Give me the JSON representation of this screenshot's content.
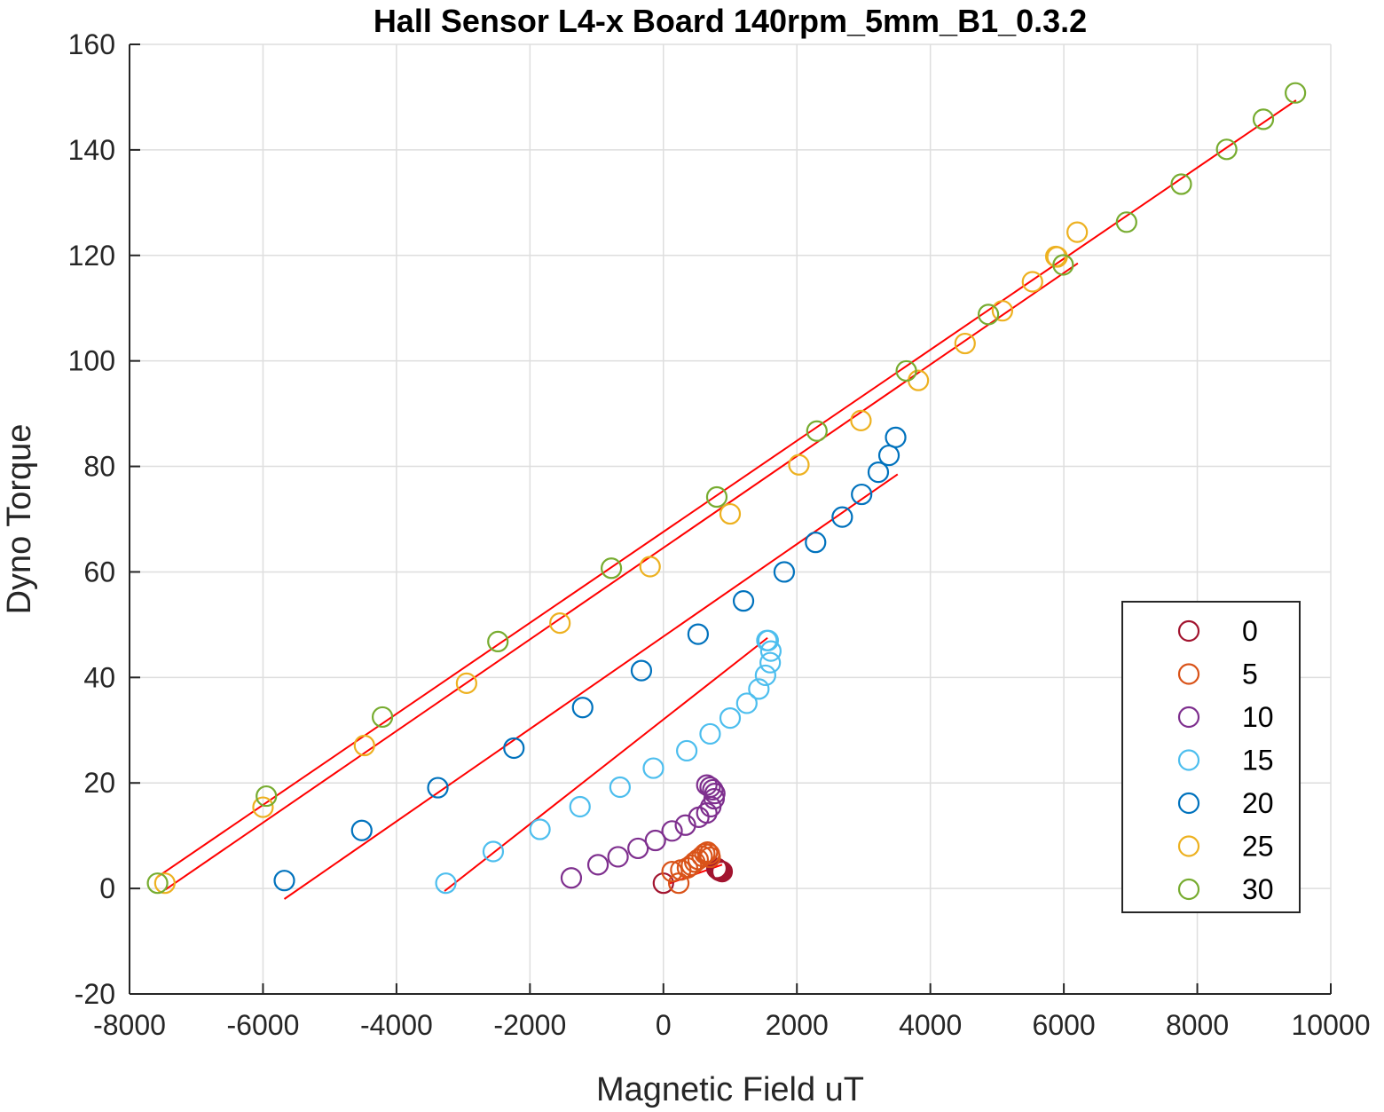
{
  "chart_data": {
    "type": "scatter",
    "title": "Hall Sensor L4-x Board 140rpm_5mm_B1_0.3.2",
    "xlabel": "Magnetic Field uT",
    "ylabel": "Dyno Torque",
    "xlim": [
      -8000,
      10000
    ],
    "ylim": [
      -20,
      160
    ],
    "xticks": [
      -8000,
      -6000,
      -4000,
      -2000,
      0,
      2000,
      4000,
      6000,
      8000,
      10000
    ],
    "yticks": [
      -20,
      0,
      20,
      40,
      60,
      80,
      100,
      120,
      140,
      160
    ],
    "xtick_labels": [
      "-8000",
      "-6000",
      "-4000",
      "-2000",
      "0",
      "2000",
      "4000",
      "6000",
      "8000",
      "10000"
    ],
    "ytick_labels": [
      "-20",
      "0",
      "20",
      "40",
      "60",
      "80",
      "100",
      "120",
      "140",
      "160"
    ],
    "grid": true,
    "legend_position": "bottom-right",
    "series": [
      {
        "name": "0",
        "color": "#a2142f",
        "marker": "circle",
        "x": [
          0,
          800,
          820,
          840,
          860,
          880
        ],
        "y": [
          1,
          3.8,
          3.6,
          3.4,
          3.3,
          3.2
        ]
      },
      {
        "name": "5",
        "color": "#d95319",
        "marker": "circle",
        "x": [
          230,
          130,
          260,
          360,
          420,
          470,
          520,
          580,
          620,
          660,
          690,
          700
        ],
        "y": [
          1,
          3.2,
          3.5,
          3.9,
          4.4,
          5,
          5.5,
          6.1,
          6.6,
          6.9,
          6.5,
          5.9
        ]
      },
      {
        "name": "10",
        "color": "#7e2f8e",
        "marker": "circle",
        "x": [
          -1380,
          -980,
          -680,
          -380,
          -120,
          130,
          330,
          530,
          650,
          710,
          760,
          770,
          740,
          700,
          650
        ],
        "y": [
          2,
          4.5,
          6,
          7.6,
          9.1,
          10.9,
          12,
          13.5,
          14.3,
          15.5,
          17,
          18,
          18.7,
          19.2,
          19.6
        ]
      },
      {
        "name": "15",
        "color": "#4dbeee",
        "marker": "circle",
        "x": [
          -3260,
          -2550,
          -1850,
          -1250,
          -650,
          -150,
          350,
          700,
          1000,
          1250,
          1430,
          1530,
          1600,
          1610,
          1570,
          1550
        ],
        "y": [
          1,
          7,
          11.2,
          15.5,
          19.2,
          22.8,
          26.1,
          29.3,
          32.3,
          35.1,
          37.8,
          40.4,
          42.8,
          45,
          47,
          47
        ]
      },
      {
        "name": "20",
        "color": "#0072bd",
        "marker": "circle",
        "x": [
          -5680,
          -4520,
          -3380,
          -2240,
          -1210,
          -330,
          520,
          1200,
          1810,
          2280,
          2680,
          2970,
          3220,
          3380,
          3480
        ],
        "y": [
          1.5,
          11,
          19.1,
          26.6,
          34.3,
          41.3,
          48.2,
          54.5,
          60,
          65.6,
          70.4,
          74.7,
          78.9,
          82.1,
          85.5
        ]
      },
      {
        "name": "25",
        "color": "#edb120",
        "marker": "circle",
        "x": [
          -7470,
          -6000,
          -4480,
          -2950,
          -1550,
          -200,
          1000,
          2030,
          2960,
          3820,
          4520,
          5080,
          5530,
          5880,
          5900,
          6200
        ],
        "y": [
          1,
          15.4,
          27.1,
          38.9,
          50.3,
          61,
          71,
          80.3,
          88.7,
          96.3,
          103.3,
          109.5,
          115,
          119.8,
          119.7,
          124.4
        ]
      },
      {
        "name": "30",
        "color": "#77ac30",
        "marker": "circle",
        "x": [
          -7580,
          -5950,
          -4210,
          -2480,
          -780,
          800,
          2300,
          3640,
          4870,
          5990,
          6940,
          7760,
          8440,
          8990,
          9470
        ],
        "y": [
          1,
          17.5,
          32.5,
          46.8,
          60.7,
          74.2,
          86.7,
          98.1,
          108.8,
          118.2,
          126.3,
          133.5,
          140.1,
          145.8,
          150.8
        ]
      }
    ],
    "fit_lines": [
      {
        "x": [
          80,
          880
        ],
        "y": [
          0.9,
          4.5
        ]
      },
      {
        "x": [
          -3280,
          1560
        ],
        "y": [
          -0.5,
          47.5
        ]
      },
      {
        "x": [
          -5680,
          3510
        ],
        "y": [
          -2,
          78.5
        ]
      },
      {
        "x": [
          -7460,
          6210
        ],
        "y": [
          -0.2,
          118.5
        ]
      },
      {
        "x": [
          -7580,
          9480
        ],
        "y": [
          2.2,
          149.4
        ]
      }
    ]
  }
}
